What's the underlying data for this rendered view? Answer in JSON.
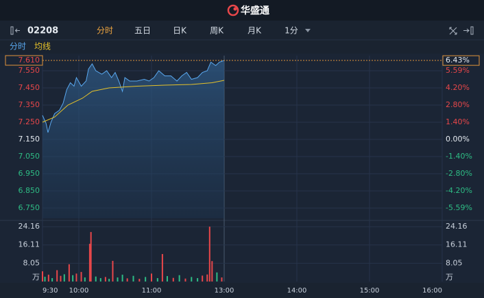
{
  "header": {
    "brand": "华盛通"
  },
  "toolbar": {
    "code": "02208",
    "tabs": [
      "分时",
      "五日",
      "日K",
      "周K",
      "月K",
      "1分"
    ],
    "active": 0
  },
  "chart_data": {
    "type": "line",
    "xlim": [
      0,
      330
    ],
    "xticks": [
      {
        "value": 0,
        "label": "9:30"
      },
      {
        "value": 30,
        "label": "10:00"
      },
      {
        "value": 90,
        "label": "11:00"
      },
      {
        "value": 150,
        "label": "13:00"
      },
      {
        "value": 210,
        "label": "14:00"
      },
      {
        "value": 270,
        "label": "15:00"
      },
      {
        "value": 330,
        "label": "16:00"
      }
    ],
    "ylim": [
      6.69,
      7.638
    ],
    "yticks": [
      {
        "value": 7.55,
        "label": "7.550"
      },
      {
        "value": 7.45,
        "label": "7.450"
      },
      {
        "value": 7.35,
        "label": "7.350"
      },
      {
        "value": 7.25,
        "label": "7.250"
      },
      {
        "value": 7.15,
        "label": "7.150"
      },
      {
        "value": 7.05,
        "label": "7.050"
      },
      {
        "value": 6.95,
        "label": "6.950"
      },
      {
        "value": 6.85,
        "label": "6.850"
      },
      {
        "value": 6.75,
        "label": "6.750"
      }
    ],
    "y2lim": [
      -6.43,
      6.83
    ],
    "y2ticks": [
      {
        "value": 5.59,
        "label": "5.59%"
      },
      {
        "value": 4.2,
        "label": "4.20%"
      },
      {
        "value": 2.8,
        "label": "2.80%"
      },
      {
        "value": 1.4,
        "label": "1.40%"
      },
      {
        "value": 0,
        "label": "0.00%"
      },
      {
        "value": -1.4,
        "label": "-1.40%"
      },
      {
        "value": -2.8,
        "label": "-2.80%"
      },
      {
        "value": -4.2,
        "label": "-4.20%"
      },
      {
        "value": -5.59,
        "label": "-5.59%"
      }
    ],
    "prev_close": 7.15,
    "up_color": "#e8474a",
    "down_color": "#2ebd85",
    "last_price": {
      "value": 7.61,
      "label": "7.610"
    },
    "last_change": {
      "value": 6.43,
      "label": "6.43%"
    },
    "series": [
      {
        "name": "分时",
        "color": "#5aa9f0",
        "x": [
          0,
          3,
          4.5,
          7,
          10,
          14,
          17,
          20,
          23,
          26,
          28,
          32,
          36,
          38,
          41,
          44,
          49,
          53,
          57,
          60,
          63,
          66,
          68,
          72,
          78,
          84,
          88,
          92,
          96,
          101,
          106,
          111,
          115,
          119,
          123,
          128,
          132,
          136,
          139,
          143,
          146,
          150
        ],
        "values": [
          7.29,
          7.242,
          7.19,
          7.25,
          7.3,
          7.32,
          7.36,
          7.44,
          7.48,
          7.46,
          7.51,
          7.46,
          7.49,
          7.56,
          7.59,
          7.55,
          7.53,
          7.55,
          7.51,
          7.54,
          7.49,
          7.43,
          7.51,
          7.49,
          7.49,
          7.5,
          7.49,
          7.51,
          7.55,
          7.52,
          7.52,
          7.49,
          7.52,
          7.54,
          7.5,
          7.51,
          7.54,
          7.55,
          7.6,
          7.58,
          7.6,
          7.61
        ]
      },
      {
        "name": "均线",
        "color": "#e6c229",
        "x": [
          0,
          10,
          21,
          33,
          41,
          55,
          78,
          101,
          123,
          140,
          150
        ],
        "values": [
          7.25,
          7.28,
          7.35,
          7.39,
          7.43,
          7.45,
          7.46,
          7.466,
          7.47,
          7.48,
          7.494
        ]
      }
    ],
    "volume": {
      "ylim": [
        0,
        26
      ],
      "yticks": [
        24.16,
        16.11,
        8.05
      ],
      "unit": "万",
      "x": [
        0,
        2,
        5,
        8,
        12,
        15,
        18,
        22,
        25,
        28,
        32,
        35,
        39,
        40,
        44,
        48,
        52,
        55,
        58,
        62,
        66,
        70,
        75,
        80,
        85,
        90,
        95,
        99,
        103,
        108,
        113,
        118,
        123,
        128,
        132,
        136,
        138,
        140,
        144,
        148
      ],
      "values": [
        4.5,
        2.1,
        3.0,
        1.5,
        5.0,
        2.5,
        3.2,
        7.6,
        2.8,
        3.5,
        4.2,
        1.8,
        16.6,
        21.8,
        2.2,
        1.5,
        2.0,
        1.2,
        9.1,
        1.8,
        3.0,
        1.4,
        2.5,
        1.2,
        2.0,
        3.5,
        1.5,
        12.1,
        2.4,
        1.6,
        2.8,
        1.3,
        2.0,
        1.5,
        2.6,
        3.1,
        24.16,
        9.0,
        4.0,
        1.8
      ],
      "direction": [
        "up",
        "down",
        "up",
        "down",
        "up",
        "up",
        "down",
        "up",
        "down",
        "up",
        "up",
        "down",
        "up",
        "up",
        "down",
        "down",
        "up",
        "down",
        "up",
        "down",
        "down",
        "up",
        "down",
        "up",
        "down",
        "up",
        "down",
        "up",
        "down",
        "up",
        "down",
        "up",
        "down",
        "down",
        "up",
        "up",
        "up",
        "up",
        "down",
        "up"
      ]
    }
  }
}
